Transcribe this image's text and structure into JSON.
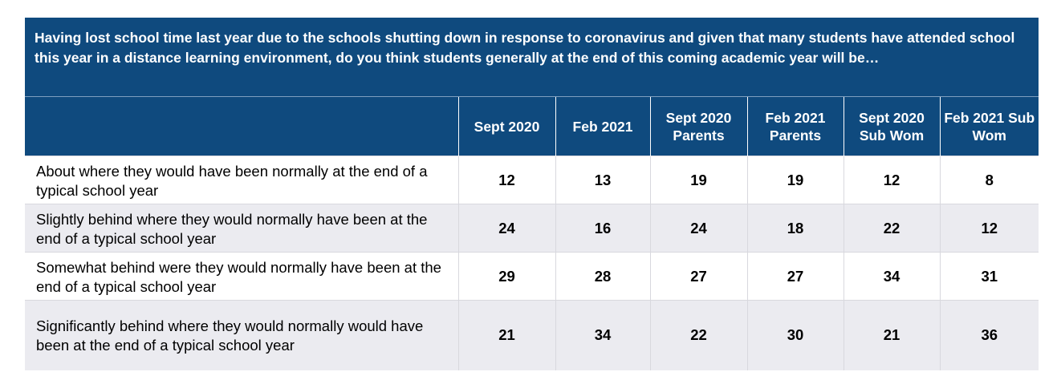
{
  "question": "Having lost school time last year due to the schools shutting down in response to coronavirus and given that many students have attended school this year in a distance learning environment, do you think students generally at the end of this coming academic year will be…",
  "columns": [
    "Sept 2020",
    "Feb 2021",
    "Sept 2020 Parents",
    "Feb 2021 Parents",
    "Sept 2020 Sub Wom",
    "Feb 2021 Sub Wom"
  ],
  "rows": [
    {
      "label": "About where they would have been normally at the end of a typical school year",
      "values": [
        "12",
        "13",
        "19",
        "19",
        "12",
        "8"
      ]
    },
    {
      "label": "Slightly behind where they would normally have been at the end of a typical school year",
      "values": [
        "24",
        "16",
        "24",
        "18",
        "22",
        "12"
      ]
    },
    {
      "label": "Somewhat behind were they would normally have been at the end of a typical school year",
      "values": [
        "29",
        "28",
        "27",
        "27",
        "34",
        "31"
      ]
    },
    {
      "label": "Significantly behind where they would normally would have been at the end of a typical school year",
      "values": [
        "21",
        "34",
        "22",
        "30",
        "21",
        "36"
      ]
    }
  ],
  "colors": {
    "header_bg": "#0f4a7e",
    "row_alt_bg": "#ebebf0"
  }
}
